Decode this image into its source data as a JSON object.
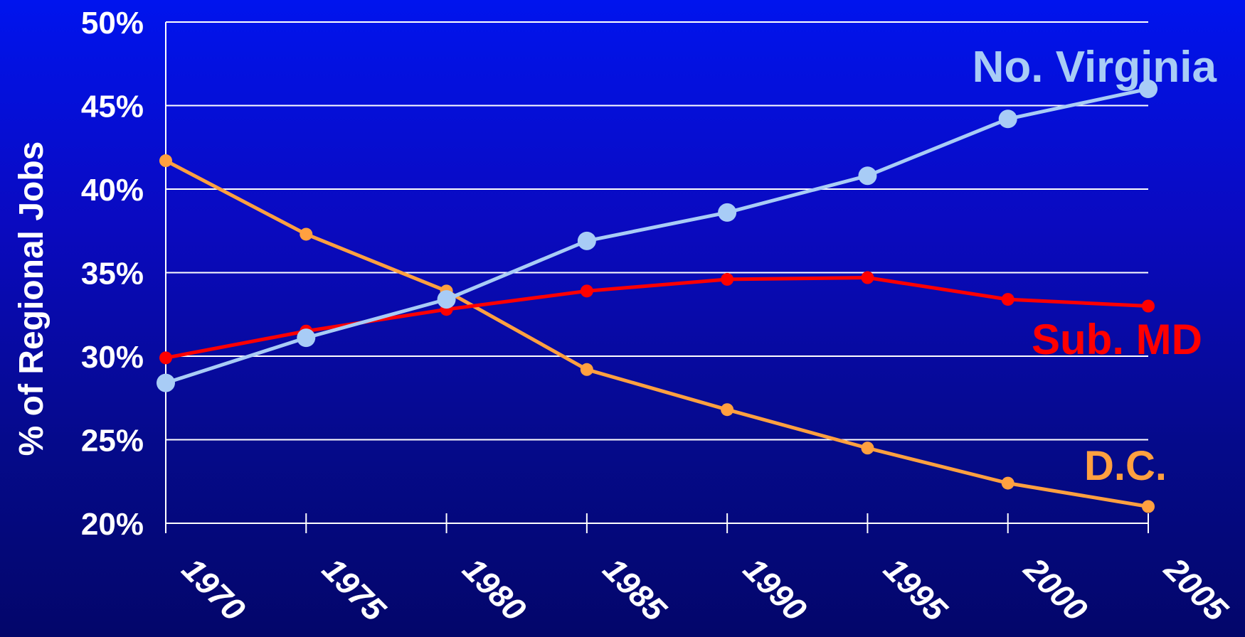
{
  "chart_data": {
    "type": "line",
    "title": "",
    "xlabel": "",
    "ylabel": "% of Regional Jobs",
    "x": [
      "1970",
      "1975",
      "1980",
      "1985",
      "1990",
      "1995",
      "2000",
      "2005"
    ],
    "y_ticks": [
      "20%",
      "25%",
      "30%",
      "35%",
      "40%",
      "45%",
      "50%"
    ],
    "ylim": [
      20,
      50
    ],
    "grid": true,
    "series": [
      {
        "name": "No. Virginia",
        "color": "#a8ccf6",
        "marker": "large-circle",
        "values": [
          28.4,
          31.1,
          33.4,
          36.9,
          38.6,
          40.8,
          44.2,
          46.0
        ]
      },
      {
        "name": "Sub. MD",
        "color": "#ff0000",
        "marker": "circle",
        "values": [
          29.9,
          31.5,
          32.8,
          33.9,
          34.6,
          34.7,
          33.4,
          33.0
        ]
      },
      {
        "name": "D.C.",
        "color": "#ffa040",
        "marker": "circle",
        "values": [
          41.7,
          37.3,
          33.9,
          29.2,
          26.8,
          24.5,
          22.4,
          21.0
        ]
      }
    ]
  }
}
